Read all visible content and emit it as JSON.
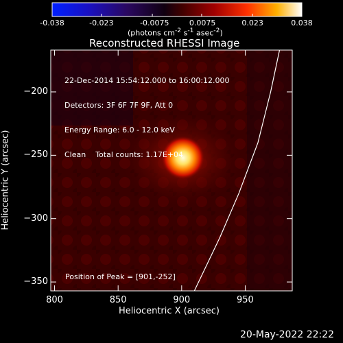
{
  "colorbar": {
    "ticks": [
      "-0.038",
      "-0.023",
      "-0.0075",
      "0.0075",
      "0.023",
      "0.038"
    ],
    "tick_values": [
      -0.038,
      -0.023,
      -0.0075,
      0.0075,
      0.023,
      0.038
    ],
    "range": [
      -0.038,
      0.038
    ],
    "unit_html": "(photons cm<sup>-2</sup> s<sup>-1</sup> asec<sup>-2</sup>)"
  },
  "chart_data": {
    "type": "heatmap",
    "title": "Reconstructed RHESSI Image",
    "xlabel": "Heliocentric X (arcsec)",
    "ylabel": "Heliocentric Y (arcsec)",
    "xlim": [
      797,
      987
    ],
    "ylim": [
      -357,
      -167
    ],
    "x_ticks": [
      800,
      850,
      900,
      950
    ],
    "y_ticks": [
      -200,
      -250,
      -300,
      -350
    ],
    "peak": {
      "x": 901,
      "y": -252
    },
    "info": {
      "line1": "22-Dec-2014 15:54:12.000 to 16:00:12.000",
      "line2": "Detectors: 3F 6F 7F 9F, Att 0",
      "line3": "Energy Range: 6.0 - 12.0 keV",
      "line4": "Clean    Total counts: 1.17E+04"
    },
    "peak_label": "Position of Peak = [901,-252]",
    "limb_points": [
      [
        977,
        -167
      ],
      [
        970,
        -200
      ],
      [
        960,
        -240
      ],
      [
        945,
        -280
      ],
      [
        930,
        -315
      ],
      [
        910,
        -357
      ]
    ]
  },
  "footer": {
    "date": "20-May-2022 22:22"
  }
}
